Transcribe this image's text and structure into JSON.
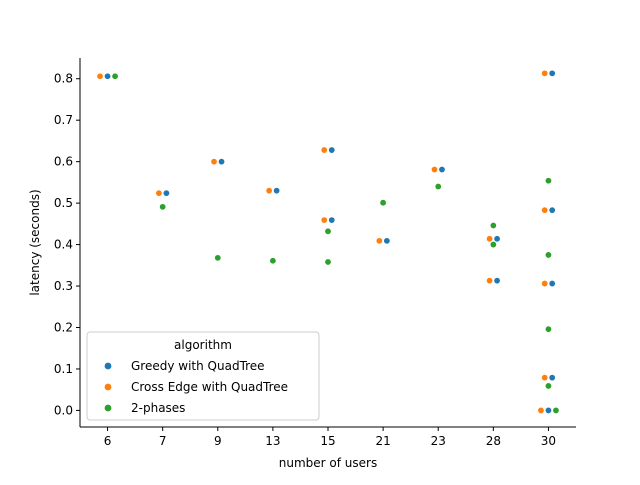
{
  "chart_data": {
    "type": "scatter",
    "xlabel": "number of users",
    "ylabel": "latency (seconds)",
    "categories": [
      "6",
      "7",
      "9",
      "13",
      "15",
      "21",
      "23",
      "28",
      "30"
    ],
    "ylim": [
      -0.04,
      0.85
    ],
    "yticks": [
      "0.0",
      "0.1",
      "0.2",
      "0.3",
      "0.4",
      "0.5",
      "0.6",
      "0.7",
      "0.8"
    ],
    "grid": false,
    "legend": {
      "title": "algorithm",
      "placement": "lower-left"
    },
    "series": [
      {
        "name": "Greedy with QuadTree",
        "color": "#1f77b4",
        "points": [
          [
            "6",
            0.806
          ],
          [
            "7",
            0.524
          ],
          [
            "9",
            0.6
          ],
          [
            "13",
            0.53
          ],
          [
            "15",
            0.628
          ],
          [
            "15",
            0.459
          ],
          [
            "21",
            0.409
          ],
          [
            "23",
            0.581
          ],
          [
            "28",
            0.414
          ],
          [
            "28",
            0.313
          ],
          [
            "30",
            0.813
          ],
          [
            "30",
            0.483
          ],
          [
            "30",
            0.306
          ],
          [
            "30",
            0.079
          ],
          [
            "30",
            0.0
          ]
        ]
      },
      {
        "name": "Cross Edge with QuadTree",
        "color": "#ff7f0e",
        "points": [
          [
            "6",
            0.806
          ],
          [
            "7",
            0.524
          ],
          [
            "9",
            0.6
          ],
          [
            "13",
            0.53
          ],
          [
            "15",
            0.628
          ],
          [
            "15",
            0.459
          ],
          [
            "21",
            0.409
          ],
          [
            "23",
            0.581
          ],
          [
            "28",
            0.414
          ],
          [
            "28",
            0.313
          ],
          [
            "30",
            0.813
          ],
          [
            "30",
            0.483
          ],
          [
            "30",
            0.306
          ],
          [
            "30",
            0.079
          ],
          [
            "30",
            0.0
          ]
        ]
      },
      {
        "name": "2-phases",
        "color": "#2ca02c",
        "points": [
          [
            "6",
            0.806
          ],
          [
            "7",
            0.491
          ],
          [
            "9",
            0.368
          ],
          [
            "13",
            0.361
          ],
          [
            "15",
            0.432
          ],
          [
            "15",
            0.358
          ],
          [
            "21",
            0.501
          ],
          [
            "23",
            0.54
          ],
          [
            "28",
            0.446
          ],
          [
            "28",
            0.4
          ],
          [
            "30",
            0.554
          ],
          [
            "30",
            0.375
          ],
          [
            "30",
            0.196
          ],
          [
            "30",
            0.059
          ],
          [
            "30",
            0.0
          ]
        ]
      }
    ]
  }
}
